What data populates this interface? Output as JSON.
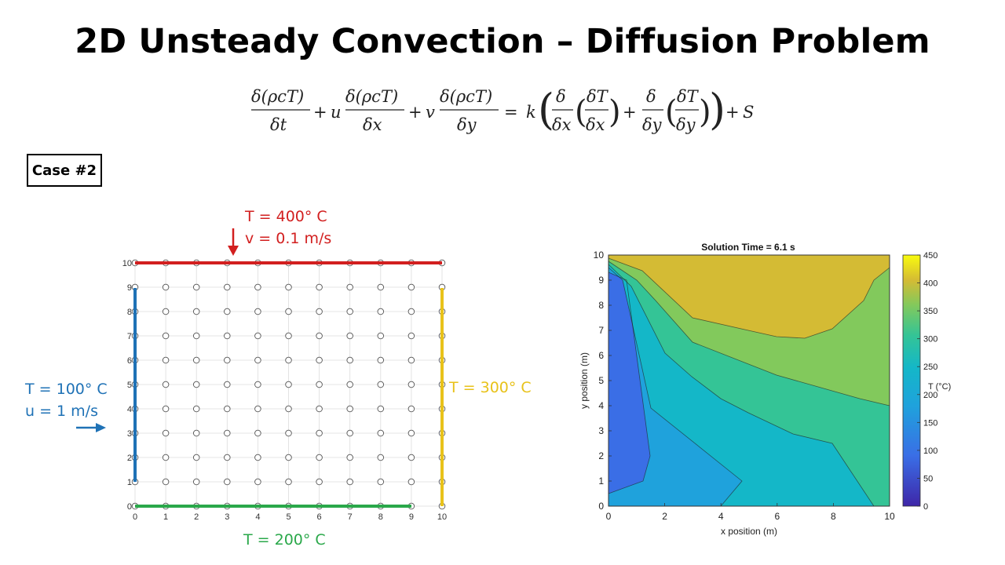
{
  "title": "2D Unsteady Convection – Diffusion Problem",
  "case_label": "Case #2",
  "boundary_conditions": {
    "top": {
      "temperature": "T = 400° C",
      "velocity": "v = 0.1 m/s",
      "color": "#d21f1f"
    },
    "left": {
      "temperature": "T = 100° C",
      "velocity": "u = 1 m/s",
      "color": "#1f72b6"
    },
    "right": {
      "temperature": "T = 300° C",
      "color": "#e8c21a"
    },
    "bottom": {
      "temperature": "T = 200° C",
      "color": "#2aa84a"
    }
  },
  "grid": {
    "x_ticks": [
      "0",
      "1",
      "2",
      "3",
      "4",
      "5",
      "6",
      "7",
      "8",
      "9",
      "10"
    ],
    "y_ticks": [
      "0",
      "1",
      "2",
      "3",
      "4",
      "5",
      "6",
      "7",
      "8",
      "9",
      "10"
    ]
  },
  "chart_data": {
    "type": "contour",
    "title": "Solution Time = 6.1 s",
    "xlabel": "x position (m)",
    "ylabel": "y position (m)",
    "xlim": [
      0,
      10
    ],
    "ylim": [
      0,
      10
    ],
    "x_ticks": [
      "0",
      "2",
      "4",
      "6",
      "8",
      "10"
    ],
    "y_ticks": [
      "0",
      "1",
      "2",
      "3",
      "4",
      "5",
      "6",
      "7",
      "8",
      "9",
      "10"
    ],
    "colorbar": {
      "label": "T (°C)",
      "ticks": [
        "0",
        "50",
        "100",
        "150",
        "200",
        "250",
        "300",
        "350",
        "400",
        "450"
      ],
      "range": [
        0,
        450
      ]
    },
    "levels": [
      {
        "value": 125,
        "color": "#3a6ee6"
      },
      {
        "value": 175,
        "color": "#1fa2dc"
      },
      {
        "value": 225,
        "color": "#14b7c8"
      },
      {
        "value": 275,
        "color": "#34c496"
      },
      {
        "value": 325,
        "color": "#82c95c"
      },
      {
        "value": 375,
        "color": "#d4bb34"
      }
    ]
  }
}
